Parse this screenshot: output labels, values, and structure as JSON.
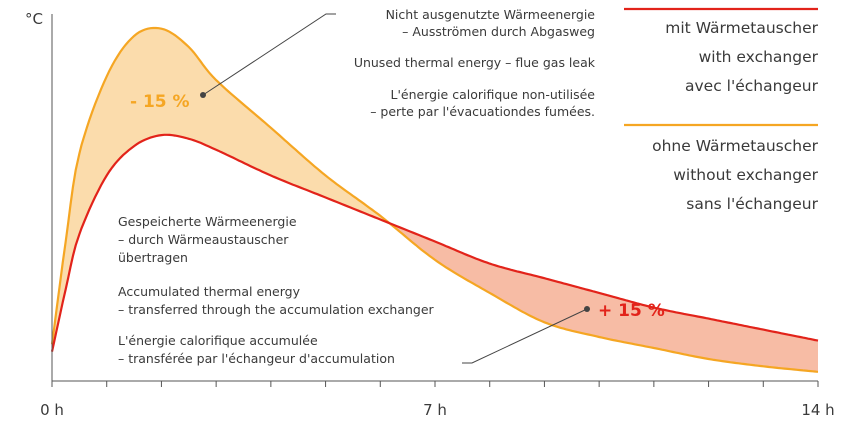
{
  "chart_data": {
    "type": "area",
    "xlim": [
      0,
      14
    ],
    "ylim": [
      0,
      100
    ],
    "x_tick_labels": [
      "0 h",
      "7 h",
      "14 h"
    ],
    "y_unit_label": "°C",
    "colors": {
      "with_exchanger": "#e2231a",
      "without_exchanger": "#f5a623",
      "loss_fill": "#fbdcac",
      "gain_fill": "#f7bca5",
      "axis": "#555555",
      "text": "#3a3a3a"
    },
    "series": [
      {
        "name": "with_exchanger",
        "legend_lines": [
          "mit Wärmetauscher",
          "with exchanger",
          "avec l'échangeur"
        ],
        "color": "#e2231a",
        "x": [
          0,
          0.25,
          0.5,
          1,
          1.5,
          2,
          2.5,
          3,
          4,
          5,
          6,
          7,
          8,
          9,
          10,
          11,
          12,
          13,
          14
        ],
        "y": [
          8,
          25,
          40,
          56,
          64,
          67,
          66,
          63,
          56,
          50,
          44,
          38,
          32,
          28,
          24,
          20,
          17,
          14,
          11
        ]
      },
      {
        "name": "without_exchanger",
        "legend_lines": [
          "ohne Wärmetauscher",
          "without exchanger",
          "sans l'échangeur"
        ],
        "color": "#f5a623",
        "x": [
          0,
          0.25,
          0.5,
          1,
          1.5,
          2,
          2.5,
          3,
          4,
          5,
          6,
          7,
          8,
          9,
          10,
          11,
          12,
          13,
          14
        ],
        "y": [
          10,
          38,
          62,
          83,
          94,
          96,
          91,
          82,
          69,
          56,
          45,
          33,
          24,
          16,
          12,
          9,
          6,
          4,
          2.5
        ]
      }
    ],
    "annotations": {
      "loss": {
        "label": "- 15 %",
        "lines_de": [
          "Nicht ausgenutzte Wärmeenergie",
          "– Ausströmen durch Abgasweg"
        ],
        "lines_en": [
          "Unused thermal energy – flue gas leak"
        ],
        "lines_fr": [
          "L'énergie calorifique non-utilisée",
          "– perte par l'évacuationdes fumées."
        ]
      },
      "gain": {
        "label": "+ 15 %",
        "lines_de": [
          "Gespeicherte Wärmeenergie",
          "– durch Wärmeaustauscher",
          "übertragen"
        ],
        "lines_en": [
          "Accumulated thermal energy",
          "– transferred through the accumulation exchanger"
        ],
        "lines_fr": [
          "L'énergie calorifique accumulée",
          "– transférée par l'échangeur d'accumulation"
        ]
      }
    }
  }
}
